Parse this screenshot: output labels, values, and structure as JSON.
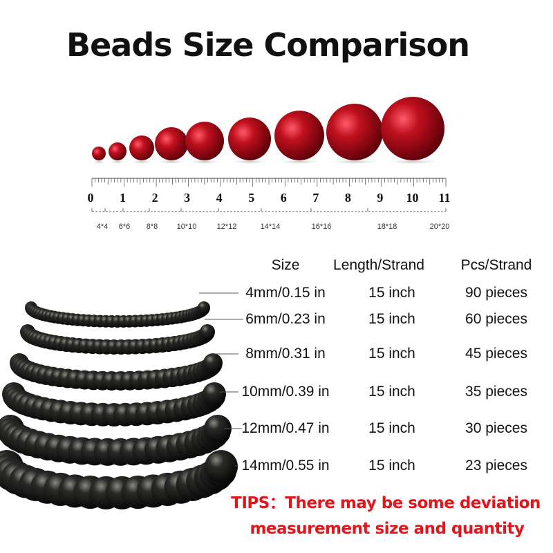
{
  "title": "Beads Size Comparison",
  "ruler": {
    "numbers": [
      "0",
      "1",
      "2",
      "3",
      "4",
      "5",
      "6",
      "7",
      "8",
      "9",
      "10",
      "11"
    ],
    "size_labels": [
      "4*4",
      "6*6",
      "8*8",
      "10*10",
      "12*12",
      "14*14",
      "16*16",
      "18*18",
      "20*20"
    ]
  },
  "bead_color": "#c0101e",
  "table": {
    "headers": [
      "Size",
      "Length/Strand",
      "Pcs/Strand"
    ],
    "rows": [
      {
        "size": "4mm/0.15 in",
        "length": "15 inch",
        "pcs": "90 pieces"
      },
      {
        "size": "6mm/0.23 in",
        "length": "15 inch",
        "pcs": "60 pieces"
      },
      {
        "size": "8mm/0.31 in",
        "length": "15 inch",
        "pcs": "45 pieces"
      },
      {
        "size": "10mm/0.39 in",
        "length": "15 inch",
        "pcs": "35 pieces"
      },
      {
        "size": "12mm/0.47 in",
        "length": "15 inch",
        "pcs": "30 pieces"
      },
      {
        "size": "14mm/0.55 in",
        "length": "15 inch",
        "pcs": "23 pieces"
      }
    ]
  },
  "tips": {
    "line1": "TIPS：There may be some deviation",
    "line2": "measurement size and quantity",
    "color": "#e3151b"
  }
}
